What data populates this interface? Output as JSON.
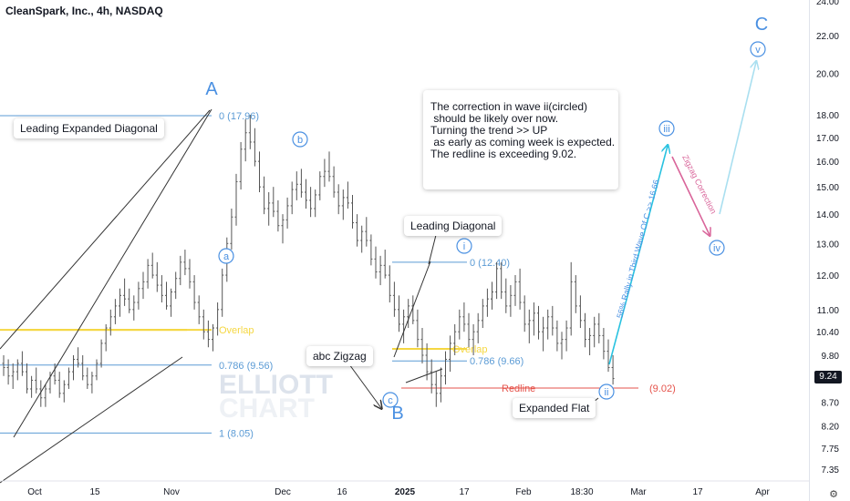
{
  "title": "CleanSpark, Inc., 4h, NASDAQ",
  "colors": {
    "candle": "#555555",
    "fib": "#5b9bd5",
    "overlap": "#f5d742",
    "redline": "#e5534b",
    "wave_blue": "#4a90e2",
    "projection_cyan": "#29c2e0",
    "projection_light": "#a9dff0",
    "correction_pink": "#d9659a",
    "channel": "#333333"
  },
  "note": {
    "lines": [
      "The correction in wave ii(circled)",
      " should be likely over now.",
      "",
      "Turning the trend >> UP",
      " as early as coming week is expected.",
      "",
      "The redline is exceeding 9.02."
    ]
  },
  "callouts": {
    "leading_expanded_diagonal": "Leading Expanded Diagonal",
    "leading_diagonal": "Leading Diagonal",
    "abc_zigzag": "abc Zigzag",
    "expanded_flat": "Expanded Flat"
  },
  "current_price": "9.24",
  "watermark": [
    "ELLIOTT",
    "CHART"
  ],
  "chart_data": {
    "type": "candlestick",
    "y_scale": "log",
    "yaxis_ticks": [
      "24.00",
      "22.00",
      "20.00",
      "18.00",
      "17.00",
      "16.00",
      "15.00",
      "14.00",
      "13.00",
      "12.00",
      "11.00",
      "10.40",
      "9.80",
      "9.24",
      "8.70",
      "8.20",
      "7.75",
      "7.35"
    ],
    "xaxis_ticks": [
      "Oct",
      "15",
      "Nov",
      "Dec",
      "16",
      "2025",
      "17",
      "Feb",
      "18:30",
      "Mar",
      "17",
      "Apr"
    ],
    "wave_labels": [
      {
        "label": "A",
        "value": 18.3
      },
      {
        "label": "B",
        "value": 8.6
      },
      {
        "label": "C",
        "value": 23.0
      },
      {
        "label": "a",
        "value": 13.2
      },
      {
        "label": "b",
        "value": 17.0
      },
      {
        "label": "c",
        "value": 8.75
      },
      {
        "label": "i",
        "value": 13.2
      },
      {
        "label": "ii",
        "value": 9.0
      },
      {
        "label": "iii",
        "value": 17.2
      },
      {
        "label": "iv",
        "value": 13.2
      },
      {
        "label": "v",
        "value": 21.3
      }
    ],
    "levels": [
      {
        "label": "0 (17.96)",
        "value": 17.96
      },
      {
        "label": "Overlap",
        "value": 10.45
      },
      {
        "label": "0.786 (9.56)",
        "value": 9.56
      },
      {
        "label": "1 (8.05)",
        "value": 8.05
      },
      {
        "label": "0 (12.40)",
        "value": 12.4
      },
      {
        "label": "Overlap",
        "value": 9.96
      },
      {
        "label": "0.786 (9.66)",
        "value": 9.66
      },
      {
        "label": "Redline",
        "value": 9.02
      },
      {
        "label": "(9.02)",
        "value": 9.02
      }
    ],
    "projection_labels": [
      "56% Rally in Third Wave Of C >> 16.66",
      "Zigzag Correction"
    ],
    "candles": [
      [
        9.6,
        9.8,
        9.3,
        9.5
      ],
      [
        9.5,
        9.7,
        9.1,
        9.3
      ],
      [
        9.3,
        9.6,
        9.0,
        9.4
      ],
      [
        9.4,
        9.7,
        9.2,
        9.6
      ],
      [
        9.6,
        9.9,
        9.3,
        9.4
      ],
      [
        9.4,
        9.6,
        8.9,
        9.0
      ],
      [
        9.0,
        9.3,
        8.8,
        9.2
      ],
      [
        9.2,
        9.5,
        8.9,
        9.0
      ],
      [
        9.0,
        9.2,
        8.6,
        8.8
      ],
      [
        8.8,
        9.1,
        8.6,
        9.0
      ],
      [
        9.0,
        9.4,
        8.9,
        9.3
      ],
      [
        9.3,
        9.6,
        9.1,
        9.2
      ],
      [
        9.2,
        9.4,
        8.8,
        8.9
      ],
      [
        8.9,
        9.2,
        8.7,
        9.1
      ],
      [
        9.1,
        9.5,
        9.0,
        9.4
      ],
      [
        9.4,
        9.8,
        9.2,
        9.7
      ],
      [
        9.7,
        10.0,
        9.5,
        9.6
      ],
      [
        9.6,
        9.8,
        9.2,
        9.3
      ],
      [
        9.3,
        9.5,
        9.0,
        9.1
      ],
      [
        9.1,
        9.4,
        8.9,
        9.3
      ],
      [
        9.3,
        9.7,
        9.2,
        9.6
      ],
      [
        9.6,
        10.2,
        9.5,
        10.1
      ],
      [
        10.1,
        10.6,
        9.9,
        10.5
      ],
      [
        10.5,
        11.0,
        10.3,
        10.8
      ],
      [
        10.8,
        11.3,
        10.6,
        11.1
      ],
      [
        11.1,
        11.6,
        10.8,
        11.4
      ],
      [
        11.4,
        11.9,
        11.1,
        11.3
      ],
      [
        11.3,
        11.6,
        10.9,
        11.0
      ],
      [
        11.0,
        11.4,
        10.7,
        11.2
      ],
      [
        11.2,
        11.8,
        11.0,
        11.6
      ],
      [
        11.6,
        12.1,
        11.3,
        11.8
      ],
      [
        11.8,
        12.5,
        11.6,
        12.3
      ],
      [
        12.3,
        12.7,
        11.9,
        12.0
      ],
      [
        12.0,
        12.4,
        11.5,
        11.7
      ],
      [
        11.7,
        12.0,
        11.2,
        11.4
      ],
      [
        11.4,
        11.8,
        11.0,
        11.1
      ],
      [
        11.1,
        11.6,
        10.8,
        11.5
      ],
      [
        11.5,
        12.1,
        11.3,
        11.9
      ],
      [
        11.9,
        12.6,
        11.7,
        12.4
      ],
      [
        12.4,
        12.8,
        12.0,
        12.2
      ],
      [
        12.2,
        12.5,
        11.6,
        11.8
      ],
      [
        11.8,
        12.0,
        11.0,
        11.2
      ],
      [
        11.2,
        11.4,
        10.6,
        10.8
      ],
      [
        10.8,
        11.0,
        10.2,
        10.4
      ],
      [
        10.4,
        10.7,
        10.0,
        10.2
      ],
      [
        10.2,
        10.6,
        9.9,
        10.5
      ],
      [
        10.5,
        11.2,
        10.3,
        11.0
      ],
      [
        11.0,
        12.2,
        10.8,
        12.0
      ],
      [
        12.0,
        13.2,
        11.8,
        13.0
      ],
      [
        13.0,
        14.2,
        12.8,
        13.9
      ],
      [
        13.9,
        15.5,
        13.6,
        15.2
      ],
      [
        15.2,
        16.8,
        14.9,
        16.5
      ],
      [
        16.5,
        17.8,
        16.0,
        17.2
      ],
      [
        17.2,
        18.0,
        16.5,
        16.8
      ],
      [
        16.8,
        17.4,
        15.8,
        16.0
      ],
      [
        16.0,
        16.4,
        14.8,
        15.0
      ],
      [
        15.0,
        15.4,
        14.0,
        14.2
      ],
      [
        14.2,
        14.8,
        13.6,
        14.4
      ],
      [
        14.4,
        15.0,
        13.9,
        14.1
      ],
      [
        14.1,
        14.5,
        13.4,
        13.6
      ],
      [
        13.6,
        14.0,
        13.0,
        13.8
      ],
      [
        13.8,
        14.6,
        13.5,
        14.3
      ],
      [
        14.3,
        15.2,
        14.0,
        14.9
      ],
      [
        14.9,
        15.6,
        14.5,
        15.1
      ],
      [
        15.1,
        15.7,
        14.6,
        14.8
      ],
      [
        14.8,
        15.3,
        14.2,
        14.5
      ],
      [
        14.5,
        15.0,
        13.9,
        14.2
      ],
      [
        14.2,
        14.9,
        13.9,
        14.7
      ],
      [
        14.7,
        15.6,
        14.5,
        15.4
      ],
      [
        15.4,
        16.1,
        15.0,
        15.6
      ],
      [
        15.6,
        16.4,
        15.2,
        15.4
      ],
      [
        15.4,
        15.8,
        14.6,
        14.8
      ],
      [
        14.8,
        15.1,
        14.0,
        14.3
      ],
      [
        14.3,
        14.9,
        13.8,
        14.6
      ],
      [
        14.6,
        15.2,
        14.2,
        14.4
      ],
      [
        14.4,
        14.7,
        13.5,
        13.7
      ],
      [
        13.7,
        14.0,
        12.9,
        13.1
      ],
      [
        13.1,
        13.6,
        12.7,
        13.4
      ],
      [
        13.4,
        13.9,
        12.9,
        13.1
      ],
      [
        13.1,
        13.3,
        12.3,
        12.5
      ],
      [
        12.5,
        12.9,
        11.9,
        12.1
      ],
      [
        12.1,
        12.6,
        11.7,
        12.3
      ],
      [
        12.3,
        12.8,
        11.9,
        12.0
      ],
      [
        12.0,
        12.3,
        11.2,
        11.4
      ],
      [
        11.4,
        11.8,
        10.8,
        11.0
      ],
      [
        11.0,
        11.4,
        10.4,
        10.6
      ],
      [
        10.6,
        11.0,
        10.1,
        10.8
      ],
      [
        10.8,
        11.3,
        10.5,
        11.1
      ],
      [
        11.1,
        11.4,
        10.6,
        10.7
      ],
      [
        10.7,
        11.0,
        10.0,
        10.2
      ],
      [
        10.2,
        10.5,
        9.6,
        9.8
      ],
      [
        9.8,
        10.1,
        9.2,
        9.4
      ],
      [
        9.4,
        9.7,
        8.9,
        9.1
      ],
      [
        9.1,
        9.4,
        8.6,
        8.9
      ],
      [
        8.9,
        9.5,
        8.7,
        9.3
      ],
      [
        9.3,
        9.9,
        9.1,
        9.7
      ],
      [
        9.7,
        10.3,
        9.4,
        10.1
      ],
      [
        10.1,
        10.6,
        9.8,
        10.4
      ],
      [
        10.4,
        11.0,
        10.2,
        10.8
      ],
      [
        10.8,
        11.2,
        10.4,
        10.6
      ],
      [
        10.6,
        10.9,
        10.0,
        10.2
      ],
      [
        10.2,
        10.6,
        9.8,
        10.4
      ],
      [
        10.4,
        10.9,
        10.1,
        10.7
      ],
      [
        10.7,
        11.3,
        10.5,
        11.1
      ],
      [
        11.1,
        11.6,
        10.8,
        11.3
      ],
      [
        11.3,
        11.8,
        11.0,
        11.5
      ],
      [
        11.5,
        12.4,
        11.3,
        12.2
      ],
      [
        12.2,
        12.4,
        11.3,
        11.5
      ],
      [
        11.5,
        11.9,
        10.9,
        11.1
      ],
      [
        11.1,
        11.7,
        10.8,
        11.4
      ],
      [
        11.4,
        12.0,
        11.1,
        11.8
      ],
      [
        11.8,
        12.2,
        11.0,
        11.2
      ],
      [
        11.2,
        11.4,
        10.4,
        10.6
      ],
      [
        10.6,
        11.0,
        10.1,
        10.7
      ],
      [
        10.7,
        11.2,
        10.3,
        10.9
      ],
      [
        10.9,
        11.1,
        10.2,
        10.4
      ],
      [
        10.4,
        10.8,
        9.9,
        10.5
      ],
      [
        10.5,
        11.0,
        10.2,
        10.8
      ],
      [
        10.8,
        11.1,
        10.3,
        10.5
      ],
      [
        10.5,
        10.7,
        9.9,
        10.1
      ],
      [
        10.1,
        10.4,
        9.7,
        10.2
      ],
      [
        10.2,
        10.7,
        9.9,
        10.5
      ],
      [
        10.5,
        12.4,
        10.3,
        11.8
      ],
      [
        11.8,
        12.0,
        10.9,
        11.1
      ],
      [
        11.1,
        11.4,
        10.5,
        10.7
      ],
      [
        10.7,
        10.9,
        10.0,
        10.2
      ],
      [
        10.2,
        10.5,
        9.8,
        10.3
      ],
      [
        10.3,
        10.8,
        10.0,
        10.6
      ],
      [
        10.6,
        10.9,
        10.1,
        10.3
      ],
      [
        10.3,
        10.5,
        9.7,
        9.9
      ],
      [
        9.9,
        10.2,
        9.4,
        9.5
      ],
      [
        9.5,
        9.8,
        9.1,
        9.24
      ]
    ]
  }
}
